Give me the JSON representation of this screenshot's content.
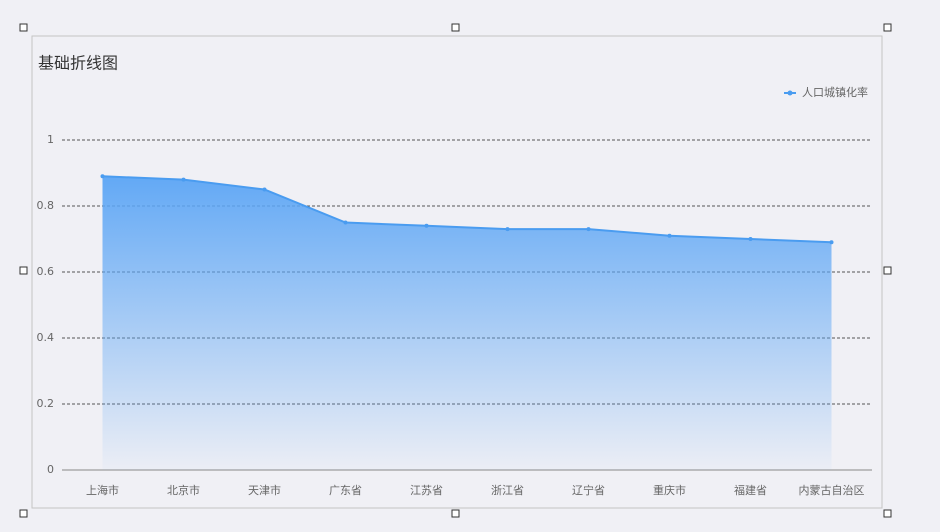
{
  "chart_data": {
    "type": "line",
    "title": "基础折线图",
    "categories": [
      "上海市",
      "北京市",
      "天津市",
      "广东省",
      "江苏省",
      "浙江省",
      "辽宁省",
      "重庆市",
      "福建省",
      "内蒙古自治区"
    ],
    "series": [
      {
        "name": "人口城镇化率",
        "color": "#4a9cf0",
        "values": [
          0.89,
          0.88,
          0.85,
          0.75,
          0.74,
          0.73,
          0.73,
          0.71,
          0.7,
          0.69
        ]
      }
    ],
    "ylim": [
      0,
      1
    ],
    "yticks": [
      0,
      0.2,
      0.4,
      0.6,
      0.8,
      1
    ],
    "grid": true,
    "area": true,
    "legend": "top-right"
  }
}
